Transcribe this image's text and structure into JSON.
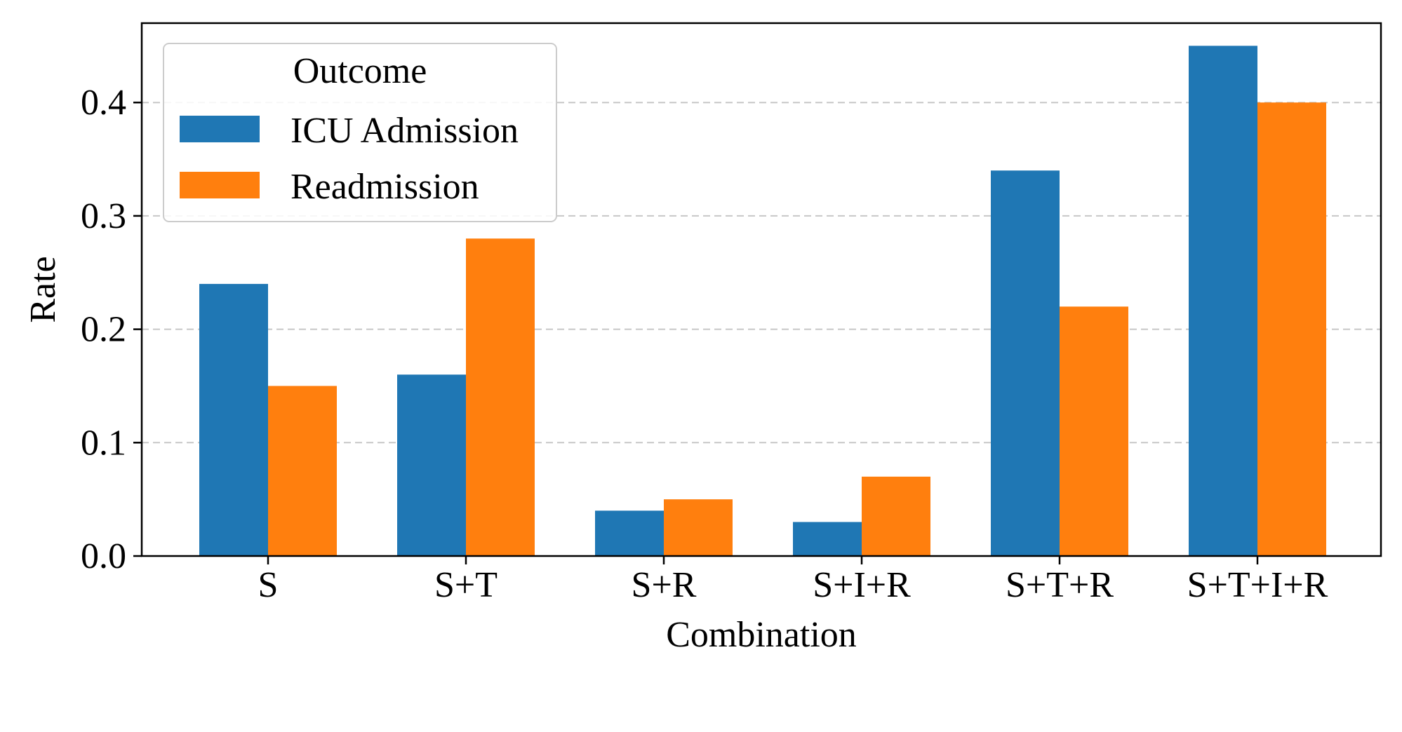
{
  "chart_data": {
    "type": "bar",
    "title": "",
    "xlabel": "Combination",
    "ylabel": "Rate",
    "categories": [
      "S",
      "S+T",
      "S+R",
      "S+I+R",
      "S+T+R",
      "S+T+I+R"
    ],
    "series": [
      {
        "name": "ICU Admission",
        "color": "#1f77b4",
        "values": [
          0.24,
          0.16,
          0.04,
          0.03,
          0.34,
          0.45
        ]
      },
      {
        "name": "Readmission",
        "color": "#ff7f0e",
        "values": [
          0.15,
          0.28,
          0.05,
          0.07,
          0.22,
          0.4
        ]
      }
    ],
    "ylim": [
      0,
      0.47
    ],
    "yticks": [
      "0.0",
      "0.1",
      "0.2",
      "0.3",
      "0.4"
    ],
    "grid": "y-dashed",
    "legend": {
      "title": "Outcome",
      "placement": "top-left"
    }
  }
}
